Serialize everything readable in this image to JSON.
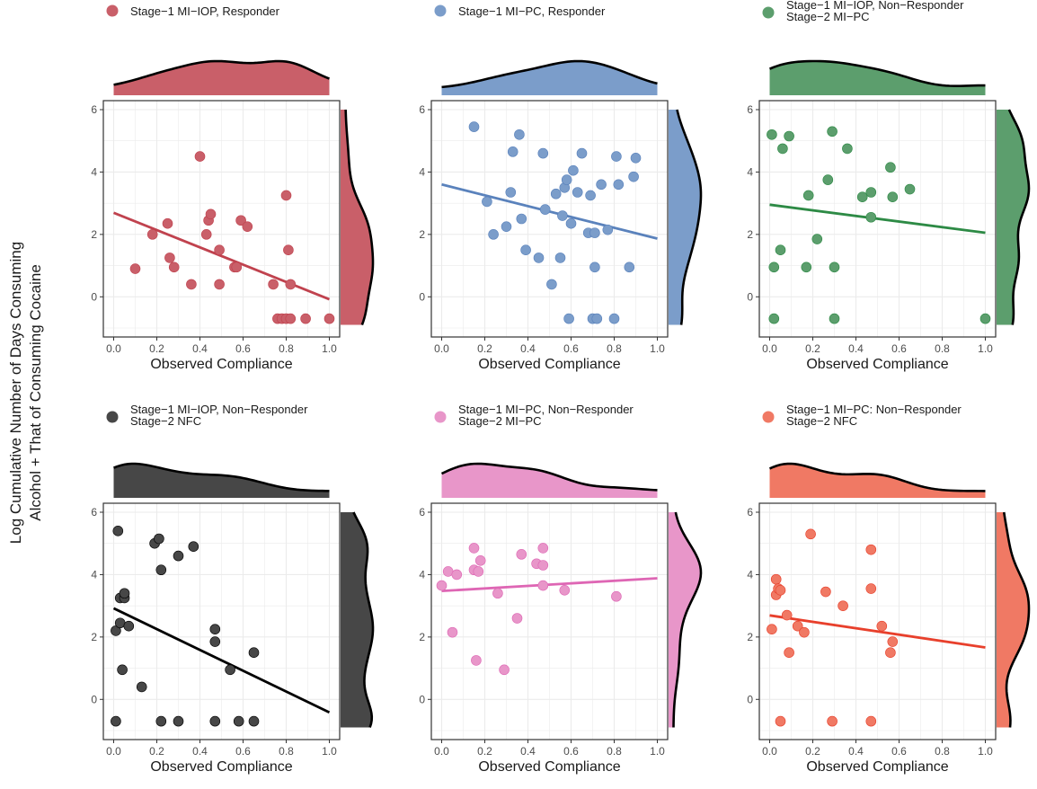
{
  "figure": {
    "ylabel_line1": "Log Cumulative Number of Days Consuming",
    "ylabel_line2": "Alcohol + That of Consuming Cocaine"
  },
  "axes": {
    "xlabel": "Observed Compliance",
    "xlim": [
      0,
      1
    ],
    "ylim": [
      -1,
      6
    ],
    "x_ticks": [
      "0.0",
      "0.2",
      "0.4",
      "0.6",
      "0.8",
      "1.0"
    ],
    "y_ticks": [
      "0",
      "2",
      "4",
      "6"
    ],
    "grid": true
  },
  "chart_data": [
    {
      "type": "scatter",
      "legend": [
        "Stage−1 MI−IOP, Responder"
      ],
      "color": "#C0424E",
      "fill": "#C95F69",
      "x": [
        0.1,
        0.18,
        0.25,
        0.26,
        0.28,
        0.36,
        0.4,
        0.43,
        0.44,
        0.45,
        0.49,
        0.49,
        0.56,
        0.57,
        0.59,
        0.62,
        0.74,
        0.76,
        0.78,
        0.8,
        0.8,
        0.81,
        0.82,
        0.82,
        0.89,
        1.0
      ],
      "y": [
        0.9,
        2.0,
        2.35,
        1.25,
        0.95,
        0.4,
        4.5,
        2.0,
        2.45,
        2.65,
        1.5,
        0.4,
        0.95,
        0.95,
        2.45,
        2.25,
        0.4,
        -0.7,
        -0.7,
        -0.7,
        3.25,
        1.5,
        -0.7,
        0.4,
        -0.7,
        -0.7
      ],
      "fit": [
        2.75,
        -0.2
      ]
    },
    {
      "type": "scatter",
      "legend": [
        "Stage−1 MI−PC, Responder"
      ],
      "color": "#5A82BC",
      "fill": "#7B9DCA",
      "x": [
        0.15,
        0.21,
        0.24,
        0.3,
        0.32,
        0.33,
        0.36,
        0.37,
        0.39,
        0.45,
        0.47,
        0.48,
        0.51,
        0.53,
        0.55,
        0.56,
        0.57,
        0.58,
        0.59,
        0.6,
        0.61,
        0.63,
        0.65,
        0.68,
        0.69,
        0.7,
        0.71,
        0.71,
        0.72,
        0.74,
        0.77,
        0.8,
        0.81,
        0.82,
        0.87,
        0.89,
        0.9
      ],
      "y": [
        5.45,
        3.05,
        2.0,
        2.25,
        3.35,
        4.65,
        5.2,
        2.5,
        1.5,
        1.25,
        4.6,
        2.8,
        0.4,
        3.3,
        1.25,
        2.6,
        3.5,
        3.75,
        -0.7,
        2.35,
        4.05,
        3.35,
        4.6,
        2.05,
        3.25,
        -0.7,
        2.05,
        0.95,
        -0.7,
        3.6,
        2.15,
        -0.7,
        4.5,
        3.6,
        0.95,
        3.85,
        4.45
      ]
    },
    {
      "type": "scatter",
      "legend": [
        "Stage−1 MI−IOP, Non−Responder",
        "Stage−2 MI−PC"
      ],
      "color": "#2D8A45",
      "fill": "#5C9E6D",
      "x": [
        0.01,
        0.02,
        0.02,
        0.05,
        0.06,
        0.09,
        0.17,
        0.18,
        0.22,
        0.27,
        0.29,
        0.3,
        0.3,
        0.36,
        0.43,
        0.47,
        0.47,
        0.56,
        0.57,
        0.65,
        1.0
      ],
      "y": [
        5.2,
        0.95,
        -0.7,
        1.5,
        4.75,
        5.15,
        0.95,
        3.25,
        1.85,
        3.75,
        5.3,
        0.95,
        -0.7,
        4.75,
        3.2,
        3.35,
        2.55,
        4.15,
        3.2,
        3.45,
        -0.7
      ]
    },
    {
      "type": "scatter",
      "legend": [
        "Stage−1 MI−IOP, Non−Responder",
        "Stage−2 NFC"
      ],
      "color": "#000000",
      "fill": "#474747",
      "x": [
        0.01,
        0.01,
        0.02,
        0.03,
        0.03,
        0.04,
        0.05,
        0.05,
        0.07,
        0.13,
        0.19,
        0.21,
        0.22,
        0.22,
        0.3,
        0.3,
        0.37,
        0.47,
        0.47,
        0.47,
        0.54,
        0.58,
        0.65,
        0.65
      ],
      "y": [
        2.2,
        -0.7,
        5.4,
        2.45,
        3.25,
        0.95,
        3.25,
        3.4,
        2.35,
        0.4,
        5.0,
        5.15,
        4.15,
        -0.7,
        4.6,
        -0.7,
        4.9,
        2.25,
        1.85,
        -0.7,
        0.95,
        -0.7,
        1.5,
        -0.7
      ]
    },
    {
      "type": "scatter",
      "legend": [
        "Stage−1 MI−PC, Non−Responder",
        "Stage−2 MI−PC"
      ],
      "color": "#DE66B4",
      "fill": "#E896C9",
      "x": [
        0.0,
        0.03,
        0.05,
        0.07,
        0.15,
        0.15,
        0.16,
        0.17,
        0.18,
        0.26,
        0.29,
        0.35,
        0.37,
        0.44,
        0.47,
        0.47,
        0.47,
        0.57,
        0.81
      ],
      "y": [
        3.65,
        4.1,
        2.15,
        4.0,
        4.85,
        4.15,
        1.25,
        4.1,
        4.45,
        3.4,
        0.95,
        2.6,
        4.65,
        4.35,
        4.85,
        4.3,
        3.65,
        3.5,
        3.3
      ]
    },
    {
      "type": "scatter",
      "legend": [
        "Stage−1 MI−PC: Non−Responder",
        "Stage−2 NFC"
      ],
      "color": "#E8402C",
      "fill": "#F07964",
      "x": [
        0.01,
        0.03,
        0.03,
        0.04,
        0.05,
        0.05,
        0.08,
        0.09,
        0.13,
        0.16,
        0.19,
        0.26,
        0.29,
        0.34,
        0.47,
        0.47,
        0.47,
        0.52,
        0.56,
        0.57
      ],
      "y": [
        2.25,
        3.35,
        3.85,
        3.55,
        -0.7,
        3.5,
        2.7,
        1.5,
        2.35,
        2.15,
        5.3,
        3.45,
        -0.7,
        3.0,
        4.8,
        3.55,
        -0.7,
        2.35,
        1.5,
        1.85
      ]
    }
  ]
}
